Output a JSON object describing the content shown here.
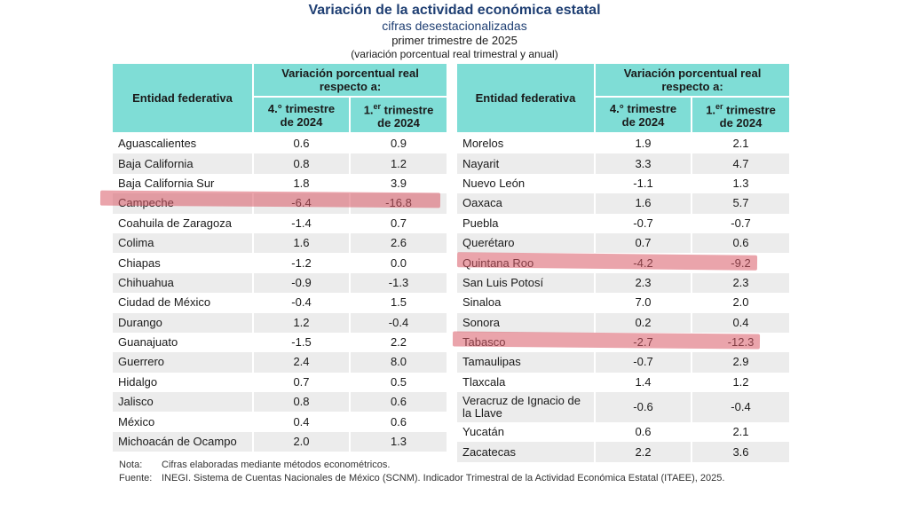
{
  "header": {
    "title": "Variación de la actividad económica estatal",
    "subtitle": "cifras desestacionalizadas",
    "period": "primer trimestre de 2025",
    "description": "(variación porcentual real trimestral y anual)"
  },
  "table_headers": {
    "entity": "Entidad federativa",
    "group": "Variación porcentual real respecto a:",
    "col1_a": "4.° trimestre",
    "col1_b": "de 2024",
    "col2_pre": "1.",
    "col2_sup": "er",
    "col2_post": " trimestre",
    "col2_b": "de 2024"
  },
  "left_rows": [
    {
      "entity": "Aguascalientes",
      "q4": "0.6",
      "q1": "0.9"
    },
    {
      "entity": "Baja California",
      "q4": "0.8",
      "q1": "1.2"
    },
    {
      "entity": "Baja California Sur",
      "q4": "1.8",
      "q1": "3.9"
    },
    {
      "entity": "Campeche",
      "q4": "-6.4",
      "q1": "-16.8"
    },
    {
      "entity": "Coahuila de Zaragoza",
      "q4": "-1.4",
      "q1": "0.7"
    },
    {
      "entity": "Colima",
      "q4": "1.6",
      "q1": "2.6"
    },
    {
      "entity": "Chiapas",
      "q4": "-1.2",
      "q1": "0.0"
    },
    {
      "entity": "Chihuahua",
      "q4": "-0.9",
      "q1": "-1.3"
    },
    {
      "entity": "Ciudad de México",
      "q4": "-0.4",
      "q1": "1.5"
    },
    {
      "entity": "Durango",
      "q4": "1.2",
      "q1": "-0.4"
    },
    {
      "entity": "Guanajuato",
      "q4": "-1.5",
      "q1": "2.2"
    },
    {
      "entity": "Guerrero",
      "q4": "2.4",
      "q1": "8.0"
    },
    {
      "entity": "Hidalgo",
      "q4": "0.7",
      "q1": "0.5"
    },
    {
      "entity": "Jalisco",
      "q4": "0.8",
      "q1": "0.6"
    },
    {
      "entity": "México",
      "q4": "0.4",
      "q1": "0.6"
    },
    {
      "entity": "Michoacán de Ocampo",
      "q4": "2.0",
      "q1": "1.3"
    }
  ],
  "right_rows": [
    {
      "entity": "Morelos",
      "q4": "1.9",
      "q1": "2.1"
    },
    {
      "entity": "Nayarit",
      "q4": "3.3",
      "q1": "4.7"
    },
    {
      "entity": "Nuevo León",
      "q4": "-1.1",
      "q1": "1.3"
    },
    {
      "entity": "Oaxaca",
      "q4": "1.6",
      "q1": "5.7"
    },
    {
      "entity": "Puebla",
      "q4": "-0.7",
      "q1": "-0.7"
    },
    {
      "entity": "Querétaro",
      "q4": "0.7",
      "q1": "0.6"
    },
    {
      "entity": "Quintana Roo",
      "q4": "-4.2",
      "q1": "-9.2"
    },
    {
      "entity": "San Luis Potosí",
      "q4": "2.3",
      "q1": "2.3"
    },
    {
      "entity": "Sinaloa",
      "q4": "7.0",
      "q1": "2.0"
    },
    {
      "entity": "Sonora",
      "q4": "0.2",
      "q1": "0.4"
    },
    {
      "entity": "Tabasco",
      "q4": "-2.7",
      "q1": "-12.3"
    },
    {
      "entity": "Tamaulipas",
      "q4": "-0.7",
      "q1": "2.9"
    },
    {
      "entity": "Tlaxcala",
      "q4": "1.4",
      "q1": "1.2"
    },
    {
      "entity": "Veracruz de Ignacio de la Llave",
      "q4": "-0.6",
      "q1": "-0.4"
    },
    {
      "entity": "Yucatán",
      "q4": "0.6",
      "q1": "2.1"
    },
    {
      "entity": "Zacatecas",
      "q4": "2.2",
      "q1": "3.6"
    }
  ],
  "highlighted_entities": [
    "Campeche",
    "Quintana Roo",
    "Tabasco"
  ],
  "highlight_color": "#d95a66",
  "header_color": "#7fddd6",
  "title_color": "#1f3f73",
  "footer": {
    "note_label": "Nota:",
    "note_text": "Cifras elaboradas mediante métodos econométricos.",
    "source_label": "Fuente:",
    "source_text": "INEGI. Sistema de Cuentas Nacionales de México (SCNM). Indicador Trimestral de la Actividad Económica Estatal (ITAEE), 2025."
  }
}
